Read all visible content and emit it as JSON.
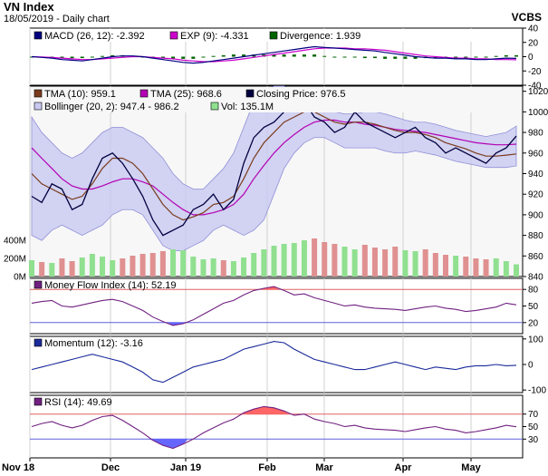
{
  "header": {
    "title": "VN Index",
    "date": "18/05/2019 - Daily chart",
    "brand": "VCBS"
  },
  "colors": {
    "panel_bg": "#ffffff",
    "price_bg": "#f7f7f7",
    "macd": "#000080",
    "exp": "#cc00cc",
    "divergence": "#006400",
    "tma10": "#7a3c1e",
    "tma25": "#b300b3",
    "close": "#000040",
    "bollinger_fill": "#c8c8f0",
    "bollinger_line": "#9090d8",
    "vol_up": "#90e090",
    "vol_down": "#e09090",
    "mfi": "#702080",
    "momentum": "#1a2a9a",
    "rsi": "#702080",
    "overbought_fill": "#ff6666",
    "oversold_fill": "#6666ff"
  },
  "chart_data": [
    {
      "type": "line",
      "panel": "macd",
      "legend": [
        {
          "label": "MACD (26, 12): -2.392",
          "color": "#000080"
        },
        {
          "label": "EXP (9): -4.331",
          "color": "#cc00cc"
        },
        {
          "label": "Divergence: 1.939",
          "color": "#006400"
        }
      ],
      "y_ticks": [
        "40",
        "20",
        "0",
        "-20",
        "-40"
      ],
      "ylim": [
        -40,
        40
      ],
      "macd": [
        0,
        -1,
        -2,
        -4,
        -5,
        -6,
        -4,
        -2,
        0,
        1,
        1,
        0,
        -2,
        -4,
        -6,
        -8,
        -9,
        -8,
        -6,
        -4,
        -2,
        0,
        2,
        4,
        6,
        8,
        10,
        12,
        14,
        13,
        12,
        11,
        10,
        9,
        8,
        6,
        4,
        2,
        0,
        -1,
        -2,
        -2,
        -3,
        -3,
        -4,
        -4,
        -3,
        -2,
        -2.392
      ],
      "signal": [
        0,
        -0.5,
        -1,
        -2,
        -3,
        -4,
        -4,
        -3,
        -2,
        -1,
        0,
        0,
        -1,
        -2,
        -3,
        -5,
        -6,
        -7,
        -7,
        -6,
        -5,
        -3,
        -1,
        1,
        3,
        5,
        7,
        9,
        11,
        12,
        12,
        12,
        11,
        11,
        10,
        9,
        7,
        5,
        3,
        1,
        0,
        -1,
        -2,
        -2,
        -3,
        -3,
        -4,
        -4,
        -4.331
      ],
      "divergence": [
        0,
        -0.5,
        -1,
        -2,
        -2,
        -2,
        0,
        1,
        2,
        2,
        1,
        0,
        -1,
        -2,
        -3,
        -3,
        -3,
        -1,
        1,
        2,
        3,
        3,
        3,
        3,
        3,
        3,
        3,
        3,
        3,
        1,
        0,
        -1,
        -1,
        -2,
        -2,
        -3,
        -3,
        -3,
        -3,
        -2,
        -2,
        -1,
        -1,
        -1,
        -1,
        -1,
        1,
        2,
        1.939
      ]
    },
    {
      "type": "line",
      "panel": "price",
      "legend": [
        {
          "label": "TMA (10): 959.1",
          "color": "#7a3c1e"
        },
        {
          "label": "TMA (25): 968.6",
          "color": "#b300b3"
        },
        {
          "label": "Closing Price: 976.5",
          "color": "#000040"
        },
        {
          "label": "Bollinger (20, 2): 947.4 - 986.2",
          "color": "#c8c8f0"
        },
        {
          "label": "Vol: 135.1M",
          "color": "#90e090"
        }
      ],
      "y_ticks": [
        "1020",
        "1000",
        "980",
        "960",
        "940",
        "920",
        "900",
        "880",
        "860",
        "840"
      ],
      "ylim": [
        840,
        1025
      ],
      "vol_ticks": [
        "400M",
        "200M",
        "0M"
      ],
      "vol_lim": [
        0,
        650
      ],
      "close": [
        918,
        912,
        930,
        925,
        905,
        910,
        935,
        955,
        960,
        950,
        935,
        918,
        895,
        880,
        885,
        890,
        905,
        910,
        920,
        905,
        915,
        950,
        975,
        985,
        990,
        1000,
        1005,
        1010,
        995,
        990,
        980,
        985,
        1000,
        990,
        985,
        980,
        975,
        980,
        985,
        975,
        970,
        960,
        965,
        960,
        955,
        950,
        960,
        965,
        976.5
      ],
      "tma10": [
        940,
        930,
        925,
        920,
        915,
        918,
        930,
        945,
        955,
        955,
        950,
        940,
        925,
        910,
        900,
        895,
        898,
        902,
        910,
        912,
        918,
        935,
        955,
        970,
        980,
        990,
        995,
        1000,
        1000,
        995,
        990,
        988,
        990,
        990,
        988,
        985,
        982,
        980,
        980,
        978,
        975,
        970,
        967,
        964,
        960,
        957,
        957,
        958,
        959.1
      ],
      "tma25": [
        965,
        955,
        945,
        935,
        928,
        925,
        925,
        928,
        932,
        935,
        935,
        932,
        928,
        920,
        912,
        905,
        900,
        900,
        902,
        905,
        910,
        920,
        935,
        948,
        960,
        970,
        978,
        985,
        990,
        992,
        992,
        990,
        990,
        988,
        987,
        985,
        983,
        982,
        981,
        980,
        978,
        976,
        974,
        972,
        970,
        969,
        968,
        968,
        968.6
      ],
      "boll_upper": [
        995,
        980,
        970,
        960,
        955,
        960,
        970,
        980,
        985,
        985,
        980,
        975,
        965,
        955,
        940,
        930,
        925,
        925,
        935,
        945,
        960,
        985,
        1010,
        1020,
        1025,
        1025,
        1020,
        1015,
        1010,
        1005,
        1000,
        998,
        998,
        1000,
        1000,
        998,
        995,
        992,
        990,
        990,
        988,
        985,
        982,
        980,
        978,
        976,
        978,
        980,
        986.2
      ],
      "boll_lower": [
        880,
        875,
        885,
        890,
        885,
        880,
        885,
        890,
        900,
        905,
        905,
        900,
        885,
        870,
        865,
        865,
        870,
        875,
        885,
        890,
        885,
        880,
        885,
        895,
        920,
        945,
        960,
        970,
        975,
        975,
        970,
        965,
        965,
        965,
        965,
        962,
        960,
        960,
        962,
        960,
        958,
        955,
        952,
        950,
        948,
        946,
        946,
        946,
        947.4
      ],
      "volume": [
        180,
        160,
        150,
        200,
        170,
        210,
        250,
        220,
        180,
        200,
        230,
        250,
        260,
        280,
        300,
        290,
        220,
        190,
        200,
        180,
        170,
        210,
        260,
        300,
        340,
        360,
        370,
        400,
        420,
        380,
        360,
        330,
        300,
        350,
        320,
        300,
        330,
        290,
        280,
        300,
        260,
        240,
        230,
        220,
        200,
        190,
        200,
        170,
        135.1
      ],
      "volume_up": [
        true,
        false,
        true,
        false,
        false,
        true,
        true,
        true,
        true,
        false,
        false,
        false,
        false,
        false,
        true,
        true,
        true,
        true,
        true,
        false,
        true,
        true,
        true,
        true,
        true,
        true,
        true,
        true,
        false,
        false,
        false,
        true,
        true,
        false,
        false,
        false,
        false,
        true,
        true,
        false,
        false,
        false,
        true,
        false,
        false,
        false,
        true,
        true,
        true
      ]
    },
    {
      "type": "line",
      "panel": "mfi",
      "legend": [
        {
          "label": "Money Flow Index (14): 52.19",
          "color": "#702080"
        }
      ],
      "y_ticks": [
        "80",
        "50",
        "20"
      ],
      "ylim": [
        0,
        100
      ],
      "thresholds": [
        80,
        20
      ],
      "values": [
        55,
        58,
        60,
        50,
        48,
        52,
        56,
        60,
        62,
        58,
        50,
        42,
        30,
        22,
        15,
        18,
        25,
        35,
        45,
        55,
        60,
        70,
        78,
        82,
        85,
        78,
        70,
        72,
        65,
        60,
        55,
        50,
        52,
        48,
        46,
        45,
        44,
        42,
        45,
        48,
        50,
        46,
        44,
        40,
        42,
        45,
        48,
        55,
        52.19
      ]
    },
    {
      "type": "line",
      "panel": "momentum",
      "legend": [
        {
          "label": "Momentum (12): -3.16",
          "color": "#1a2a9a"
        }
      ],
      "y_ticks": [
        "100",
        "0",
        "-100"
      ],
      "ylim": [
        -110,
        110
      ],
      "values": [
        -20,
        -10,
        0,
        10,
        20,
        30,
        40,
        30,
        20,
        10,
        -10,
        -30,
        -60,
        -70,
        -50,
        -30,
        -10,
        0,
        10,
        20,
        40,
        60,
        70,
        80,
        90,
        85,
        60,
        40,
        20,
        10,
        0,
        -10,
        -20,
        -20,
        -10,
        0,
        10,
        0,
        -10,
        -20,
        -10,
        -15,
        -20,
        -10,
        -5,
        -5,
        0,
        -5,
        -3.16
      ]
    },
    {
      "type": "line",
      "panel": "rsi",
      "legend": [
        {
          "label": "RSI (14): 49.69",
          "color": "#702080"
        }
      ],
      "y_ticks": [
        "70",
        "50",
        "30"
      ],
      "ylim": [
        0,
        100
      ],
      "thresholds": [
        70,
        30
      ],
      "values": [
        50,
        55,
        58,
        52,
        48,
        52,
        60,
        66,
        68,
        60,
        50,
        40,
        28,
        20,
        15,
        22,
        30,
        40,
        48,
        56,
        62,
        72,
        78,
        82,
        80,
        75,
        68,
        70,
        62,
        58,
        55,
        50,
        52,
        48,
        46,
        45,
        44,
        42,
        45,
        48,
        50,
        46,
        44,
        40,
        42,
        45,
        48,
        52,
        49.69
      ]
    }
  ],
  "x_axis": {
    "labels": [
      "Nov 18",
      "Dec",
      "Jan 19",
      "Feb",
      "Mar",
      "Apr",
      "May"
    ]
  }
}
